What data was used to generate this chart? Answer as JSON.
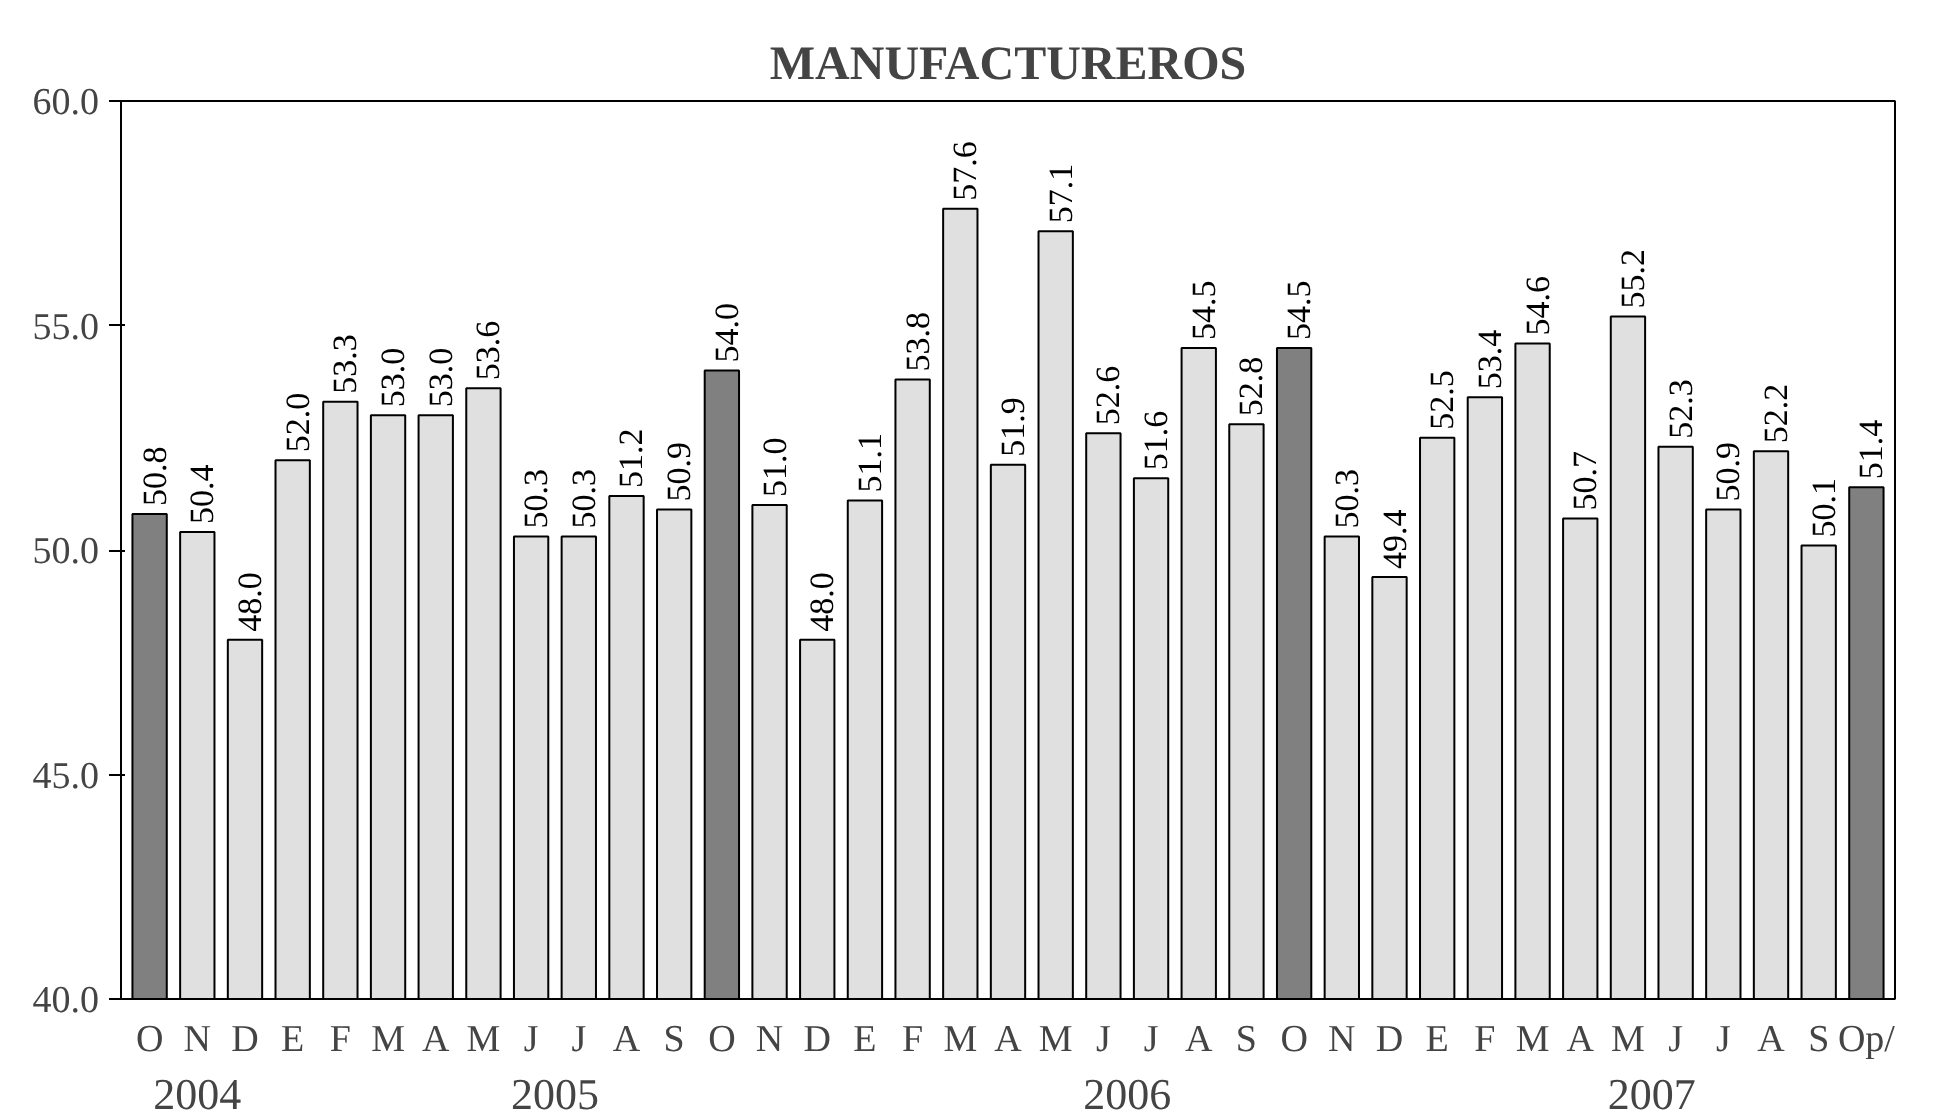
{
  "chart_data": {
    "type": "bar",
    "title": "MANUFACTUREROS",
    "categories": [
      "O",
      "N",
      "D",
      "E",
      "F",
      "M",
      "A",
      "M",
      "J",
      "J",
      "A",
      "S",
      "O",
      "N",
      "D",
      "E",
      "F",
      "M",
      "A",
      "M",
      "J",
      "J",
      "A",
      "S",
      "O",
      "N",
      "D",
      "E",
      "F",
      "M",
      "A",
      "M",
      "J",
      "J",
      "A",
      "S",
      "Op/"
    ],
    "values": [
      50.8,
      50.4,
      48.0,
      52.0,
      53.3,
      53.0,
      53.0,
      53.6,
      50.3,
      50.3,
      51.2,
      50.9,
      54.0,
      51.0,
      48.0,
      51.1,
      53.8,
      57.6,
      51.9,
      57.1,
      52.6,
      51.6,
      54.5,
      52.8,
      54.5,
      50.3,
      49.4,
      52.5,
      53.4,
      54.6,
      50.7,
      55.2,
      52.3,
      50.9,
      52.2,
      50.1,
      51.4
    ],
    "colors": [
      "#808080",
      "#e0e0e0",
      "#e0e0e0",
      "#e0e0e0",
      "#e0e0e0",
      "#e0e0e0",
      "#e0e0e0",
      "#e0e0e0",
      "#e0e0e0",
      "#e0e0e0",
      "#e0e0e0",
      "#e0e0e0",
      "#808080",
      "#e0e0e0",
      "#e0e0e0",
      "#e0e0e0",
      "#e0e0e0",
      "#e0e0e0",
      "#e0e0e0",
      "#e0e0e0",
      "#e0e0e0",
      "#e0e0e0",
      "#e0e0e0",
      "#e0e0e0",
      "#808080",
      "#e0e0e0",
      "#e0e0e0",
      "#e0e0e0",
      "#e0e0e0",
      "#e0e0e0",
      "#e0e0e0",
      "#e0e0e0",
      "#e0e0e0",
      "#e0e0e0",
      "#e0e0e0",
      "#e0e0e0",
      "#808080"
    ],
    "ylim": [
      40,
      60
    ],
    "yticks": [
      {
        "value": 40,
        "label": "40.0"
      },
      {
        "value": 45,
        "label": "45.0"
      },
      {
        "value": 50,
        "label": "50.0"
      },
      {
        "value": 55,
        "label": "55.0"
      },
      {
        "value": 60,
        "label": "60.0"
      }
    ],
    "value_labels": [
      "50.8",
      "50.4",
      "48.0",
      "52.0",
      "53.3",
      "53.0",
      "53.0",
      "53.6",
      "50.3",
      "50.3",
      "51.2",
      "50.9",
      "54.0",
      "51.0",
      "48.0",
      "51.1",
      "53.8",
      "57.6",
      "51.9",
      "57.1",
      "52.6",
      "51.6",
      "54.5",
      "52.8",
      "54.5",
      "50.3",
      "49.4",
      "52.5",
      "53.4",
      "54.6",
      "50.7",
      "55.2",
      "52.3",
      "50.9",
      "52.2",
      "50.1",
      "51.4"
    ],
    "grid": false,
    "annotations": [
      "2004",
      "2005",
      "2006",
      "2007"
    ]
  }
}
